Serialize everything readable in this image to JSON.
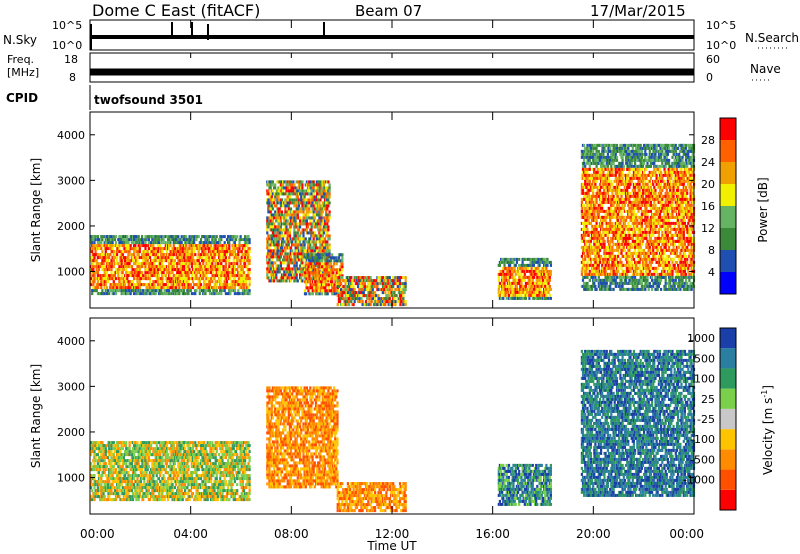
{
  "header": {
    "station": "Dome C East (fitACF)",
    "beam": "Beam 07",
    "date": "17/Mar/2015"
  },
  "nsky_panel": {
    "left_label": "N.Sky",
    "left_ticks": [
      "10^5",
      "10^0"
    ],
    "right_ticks": [
      "10^5",
      "10^0"
    ],
    "right_label": "N.Search"
  },
  "freq_panel": {
    "left_label_line1": "Freq.",
    "left_label_line2": "[MHz]",
    "left_ticks": [
      "18",
      "8"
    ],
    "right_ticks": [
      "60",
      "0"
    ],
    "right_label": "Nave"
  },
  "cpid_panel": {
    "label": "CPID",
    "value": "twofsound 3501"
  },
  "colors": {
    "power": [
      "#0000ff",
      "#1f4fb0",
      "#3a8a3a",
      "#64b464",
      "#f0f000",
      "#f0a000",
      "#ff6000",
      "#ff0000"
    ],
    "velocity": [
      "#ff0000",
      "#ff5000",
      "#ff8c00",
      "#ffc400",
      "#c8c8c8",
      "#7ad04a",
      "#2e9a5e",
      "#2a7fa0",
      "#1a3fa8"
    ]
  },
  "chart_data": [
    {
      "type": "heatmap",
      "quantity": "power",
      "ylabel": "Slant Range [km]",
      "yticks": [
        "1000",
        "2000",
        "3000",
        "4000"
      ],
      "ylim": [
        200,
        4500
      ],
      "xlim_hours": [
        0,
        24
      ],
      "colorbar_label": "Power [dB]",
      "colorbar_ticks": [
        "4",
        "8",
        "12",
        "16",
        "20",
        "24",
        "28"
      ],
      "colorbar_range": [
        0,
        32
      ],
      "features": [
        {
          "t0": 0.0,
          "t1": 6.3,
          "r0": 500,
          "r1": 1800,
          "level": "strong"
        },
        {
          "t0": 7.0,
          "t1": 9.5,
          "r0": 800,
          "r1": 3000,
          "level": "mixed"
        },
        {
          "t0": 8.5,
          "t1": 10.0,
          "r0": 500,
          "r1": 1400,
          "level": "strong"
        },
        {
          "t0": 9.8,
          "t1": 12.5,
          "r0": 300,
          "r1": 900,
          "level": "mixed"
        },
        {
          "t0": 16.2,
          "t1": 18.3,
          "r0": 400,
          "r1": 1300,
          "level": "strong"
        },
        {
          "t0": 19.5,
          "t1": 24.0,
          "r0": 600,
          "r1": 3800,
          "level": "strong"
        }
      ]
    },
    {
      "type": "heatmap",
      "quantity": "velocity",
      "ylabel": "Slant Range [km]",
      "yticks": [
        "1000",
        "2000",
        "3000",
        "4000"
      ],
      "ylim": [
        200,
        4500
      ],
      "xlim_hours": [
        0,
        24
      ],
      "colorbar_label": "Velocity [m s",
      "colorbar_label_sup": "-1",
      "colorbar_label_end": "]",
      "colorbar_ticks": [
        "1000",
        "500",
        "100",
        "25",
        "-25",
        "-100",
        "-500",
        "-1000"
      ],
      "features": [
        {
          "t0": 0.0,
          "t1": 6.3,
          "r0": 500,
          "r1": 1800,
          "level": "green-orange"
        },
        {
          "t0": 7.0,
          "t1": 9.8,
          "r0": 800,
          "r1": 3000,
          "level": "orange"
        },
        {
          "t0": 9.8,
          "t1": 12.5,
          "r0": 300,
          "r1": 900,
          "level": "orange"
        },
        {
          "t0": 16.2,
          "t1": 18.3,
          "r0": 400,
          "r1": 1300,
          "level": "blue-green"
        },
        {
          "t0": 19.5,
          "t1": 24.0,
          "r0": 600,
          "r1": 3800,
          "level": "blue"
        }
      ]
    }
  ],
  "time_axis": {
    "ticks": [
      "00:00",
      "04:00",
      "08:00",
      "12:00",
      "16:00",
      "20:00",
      "00:00"
    ],
    "label": "Time UT"
  }
}
